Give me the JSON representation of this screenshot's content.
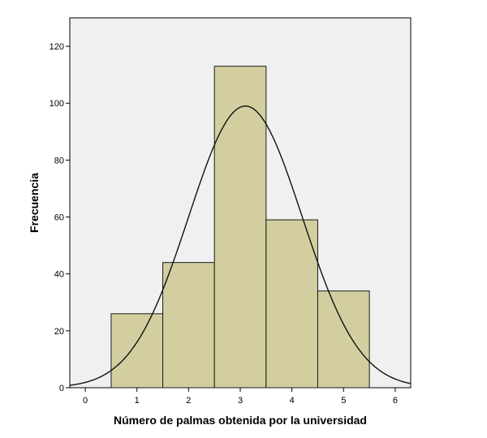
{
  "chart_data": {
    "type": "bar",
    "subtype": "histogram",
    "title": "",
    "xlabel": "Número de palmas obtenida por la universidad",
    "ylabel": "Frecuencia",
    "bins": [
      {
        "center": 1,
        "from": 0.5,
        "to": 1.5,
        "value": 26
      },
      {
        "center": 2,
        "from": 1.5,
        "to": 2.5,
        "value": 44
      },
      {
        "center": 3,
        "from": 2.5,
        "to": 3.5,
        "value": 113
      },
      {
        "center": 4,
        "from": 3.5,
        "to": 4.5,
        "value": 59
      },
      {
        "center": 5,
        "from": 4.5,
        "to": 5.5,
        "value": 34
      }
    ],
    "normal_curve": {
      "mean": 3.1,
      "peak": 99,
      "sd": 1.1
    },
    "xlim": [
      -0.3,
      6.3
    ],
    "ylim": [
      0,
      130
    ],
    "xticks": [
      0,
      1,
      2,
      3,
      4,
      5,
      6
    ],
    "yticks": [
      0,
      20,
      40,
      60,
      80,
      100,
      120
    ],
    "grid": false,
    "legend": "none",
    "colors": {
      "plot_background": "#f0f0f0",
      "bar_fill": "#d3ce9f",
      "bar_stroke": "#1a1a1a",
      "curve": "#111111",
      "axis": "#000000"
    }
  }
}
